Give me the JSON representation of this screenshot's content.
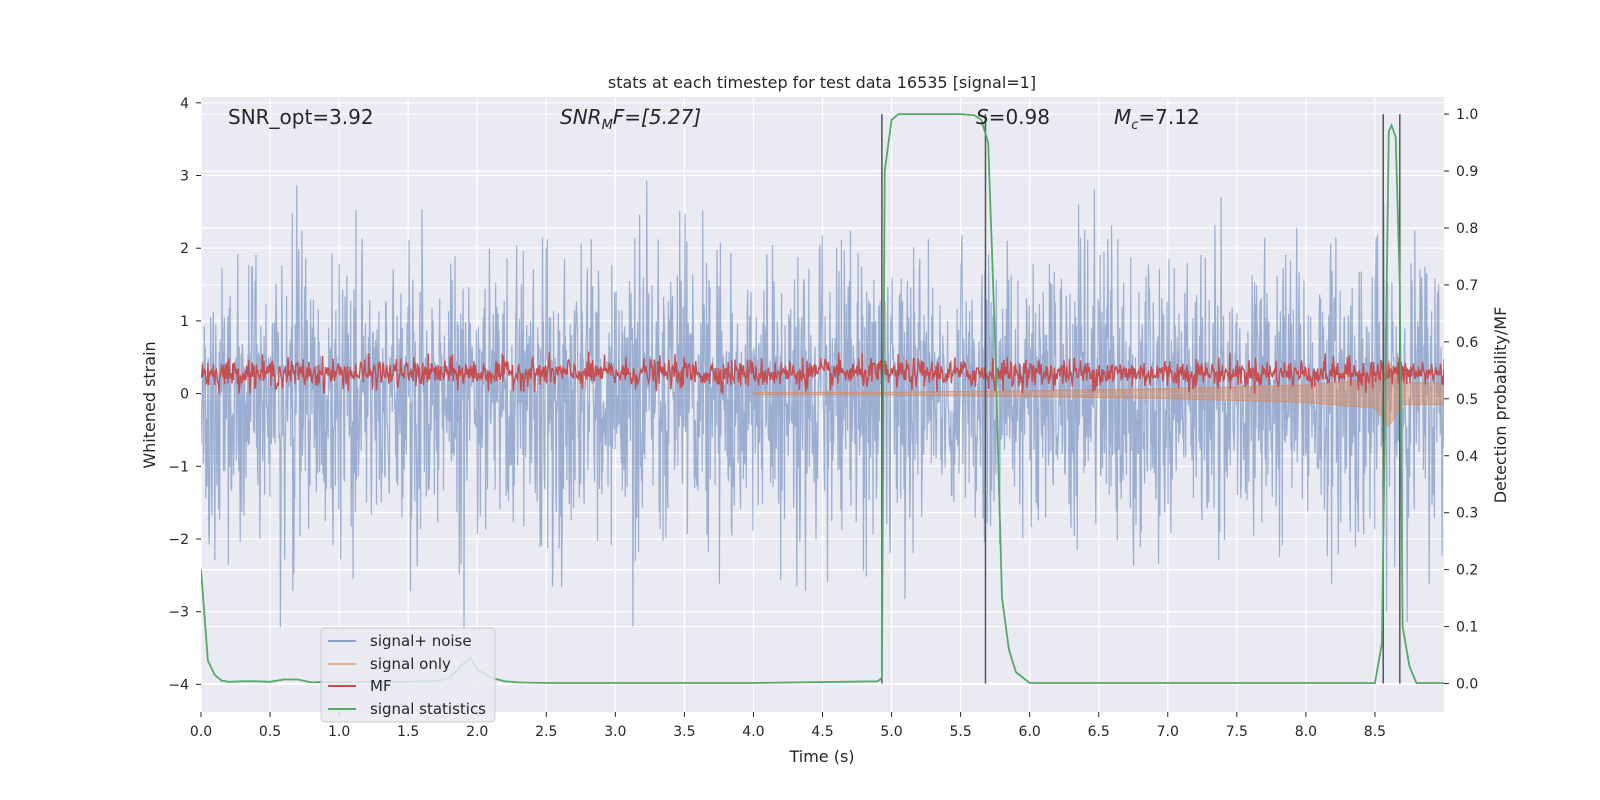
{
  "chart_data": {
    "type": "line",
    "title": "stats at each timestep for test data 16535 [signal=1]",
    "xlabel": "Time (s)",
    "ylabel_left": "Whitened strain",
    "ylabel_right": "Detection probability/MF",
    "xlim": [
      0,
      9.0
    ],
    "ylim_left": [
      -4.38,
      4.08
    ],
    "ylim_right": [
      -0.05,
      1.03
    ],
    "xticks": [
      "0.0",
      "0.5",
      "1.0",
      "1.5",
      "2.0",
      "2.5",
      "3.0",
      "3.5",
      "4.0",
      "4.5",
      "5.0",
      "5.5",
      "6.0",
      "6.5",
      "7.0",
      "7.5",
      "8.0",
      "8.5"
    ],
    "yticks_left": [
      "4",
      "3",
      "2",
      "1",
      "0",
      "−1",
      "−2",
      "−3",
      "−4"
    ],
    "yticks_right": [
      "1.0",
      "0.9",
      "0.8",
      "0.7",
      "0.6",
      "0.5",
      "0.4",
      "0.3",
      "0.2",
      "0.1",
      "0.0"
    ],
    "grid": true,
    "legend_position": "lower-left",
    "annotations": {
      "snr_opt": "SNR_opt=3.92",
      "snr_mf_label": "SNR",
      "snr_mf_sub": "M",
      "snr_mf_rest": "F=[5.27]",
      "s_label": "S",
      "s_rest": "=0.98",
      "mc_label": "M",
      "mc_sub": "c",
      "mc_rest": "=7.12"
    },
    "vlines": [
      4.93,
      5.68,
      8.56,
      8.68
    ],
    "series": [
      {
        "name": "signal+ noise",
        "color": "#4c72b0",
        "envelope_std": 1.0,
        "range": [
          -4.0,
          3.7
        ]
      },
      {
        "name": "signal only",
        "color": "#dd8452",
        "description_values": {
          "t": [
            0,
            5.0,
            6.0,
            7.0,
            8.0,
            8.5,
            8.6,
            8.7
          ],
          "amp": [
            0,
            0.02,
            0.04,
            0.07,
            0.12,
            0.2,
            0.45,
            0.15
          ]
        }
      },
      {
        "name": "MF",
        "color": "#c44e52",
        "mean": 0.28,
        "range": [
          0.0,
          0.8
        ]
      },
      {
        "name": "signal statistics",
        "color": "#55a868",
        "t": [
          0.0,
          0.05,
          0.1,
          0.15,
          0.2,
          0.3,
          0.4,
          0.5,
          0.6,
          0.7,
          0.8,
          0.9,
          1.0,
          1.2,
          1.4,
          1.6,
          1.7,
          1.8,
          1.9,
          1.95,
          2.0,
          2.1,
          2.2,
          2.3,
          2.5,
          3.0,
          4.0,
          4.9,
          4.93,
          4.95,
          5.0,
          5.05,
          5.1,
          5.3,
          5.5,
          5.6,
          5.65,
          5.7,
          5.75,
          5.8,
          5.85,
          5.9,
          6.0,
          6.5,
          7.0,
          8.0,
          8.5,
          8.55,
          8.6,
          8.62,
          8.65,
          8.68,
          8.7,
          8.75,
          8.8,
          9.0
        ],
        "values": [
          0.2,
          0.04,
          0.015,
          0.005,
          0.003,
          0.004,
          0.004,
          0.003,
          0.007,
          0.007,
          0.002,
          0.003,
          0.002,
          0.003,
          0.003,
          0.004,
          0.004,
          0.01,
          0.035,
          0.045,
          0.025,
          0.01,
          0.004,
          0.002,
          0.001,
          0.001,
          0.001,
          0.004,
          0.01,
          0.9,
          0.99,
          1.0,
          1.0,
          1.0,
          1.0,
          0.998,
          0.99,
          0.95,
          0.6,
          0.15,
          0.06,
          0.02,
          0.001,
          0.001,
          0.001,
          0.001,
          0.001,
          0.07,
          0.97,
          0.98,
          0.96,
          0.7,
          0.1,
          0.03,
          0.001,
          0.001
        ]
      }
    ]
  }
}
